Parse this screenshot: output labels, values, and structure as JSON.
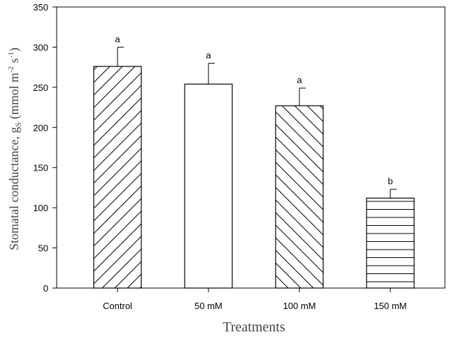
{
  "chart_data": {
    "type": "bar",
    "title": "",
    "xlabel": "Treatments",
    "ylabel": {
      "main": "Stomatal conductance, g",
      "sub": "S",
      "unit_open": " (mmol m",
      "exp1": "-2",
      "unit_mid": " s",
      "exp2": "-1",
      "unit_close": ")"
    },
    "categories": [
      "Control",
      "50 mM",
      "100 mM",
      "150 mM"
    ],
    "values": [
      276,
      254,
      227,
      112
    ],
    "errors": [
      24,
      26,
      22,
      11
    ],
    "significance": [
      "a",
      "a",
      "a",
      "b"
    ],
    "patterns": [
      "diagonal-up",
      "none",
      "diagonal-down",
      "horizontal"
    ],
    "ylim": [
      0,
      350
    ],
    "yticks": [
      0,
      50,
      100,
      150,
      200,
      250,
      300,
      350
    ],
    "grid": false,
    "legend": "none"
  }
}
